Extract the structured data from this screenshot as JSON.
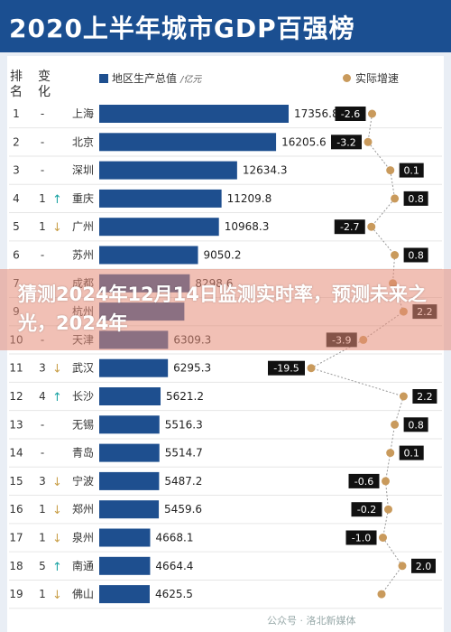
{
  "header": {
    "title": "2020上半年城市GDP百强榜"
  },
  "columns": {
    "rank": [
      "排",
      "名"
    ],
    "change": [
      "变",
      "化"
    ]
  },
  "legend": {
    "gdp_label": "地区生产总值",
    "gdp_unit": "/亿元",
    "growth_label": "实际增速"
  },
  "overlay": {
    "text": "猜测2024年12月14日监测实时率，预测未来之光，2024年"
  },
  "watermark": "公众号 · 洛北新媒体",
  "colors": {
    "bar": "#1e4f8f",
    "dot": "#c99a5c",
    "up": "#1ba3a3",
    "down": "#c9a04a",
    "header": "#1b4f91"
  },
  "chart_data": {
    "type": "bar",
    "title": "2020上半年城市GDP百强榜",
    "categories": [
      "上海",
      "北京",
      "深圳",
      "重庆",
      "广州",
      "苏州",
      "成都",
      "杭州",
      "天津",
      "武汉",
      "长沙",
      "无锡",
      "青岛",
      "宁波",
      "郑州",
      "泉州",
      "南通",
      "佛山"
    ],
    "ranks": [
      1,
      2,
      3,
      4,
      5,
      6,
      7,
      9,
      10,
      11,
      12,
      13,
      14,
      15,
      16,
      17,
      18,
      19
    ],
    "change": [
      "-",
      "-",
      "-",
      "1",
      "1",
      "-",
      "",
      "",
      "-",
      "3",
      "4",
      "-",
      "-",
      "3",
      "1",
      "1",
      "5",
      "1"
    ],
    "change_dir": [
      "none",
      "none",
      "none",
      "up",
      "down",
      "none",
      "",
      "",
      "none",
      "down",
      "up",
      "none",
      "none",
      "down",
      "down",
      "down",
      "up",
      "down"
    ],
    "series": [
      {
        "name": "地区生产总值",
        "unit": "亿元",
        "values": [
          17356.8,
          16205.6,
          12634.3,
          11209.8,
          10968.3,
          9050.2,
          8298.6,
          7800,
          6309.3,
          6295.3,
          5621.2,
          5516.3,
          5514.7,
          5487.2,
          5459.6,
          4668.1,
          4664.4,
          4625.5
        ],
        "labels": [
          "17356.8",
          "16205.6",
          "12634.3",
          "11209.8",
          "10968.3",
          "9050.2",
          "8298.6",
          "",
          "6309.3",
          "6295.3",
          "5621.2",
          "5516.3",
          "5514.7",
          "5487.2",
          "5459.6",
          "4668.1",
          "4664.4",
          "4625.5"
        ]
      },
      {
        "name": "实际增速",
        "values": [
          -2.6,
          -3.2,
          0.1,
          0.8,
          -2.7,
          0.8,
          0.5,
          2.2,
          -3.9,
          -19.5,
          2.2,
          0.8,
          0.1,
          -0.6,
          -0.2,
          -1.0,
          2.0,
          -1.2
        ],
        "labels": [
          "-2.6",
          "-3.2",
          "0.1",
          "0.8",
          "-2.7",
          "0.8",
          "",
          "2.2",
          "-3.9",
          "-19.5",
          "2.2",
          "0.8",
          "0.1",
          "-0.6",
          "-0.2",
          "-1.0",
          "2.0",
          ""
        ]
      }
    ]
  }
}
